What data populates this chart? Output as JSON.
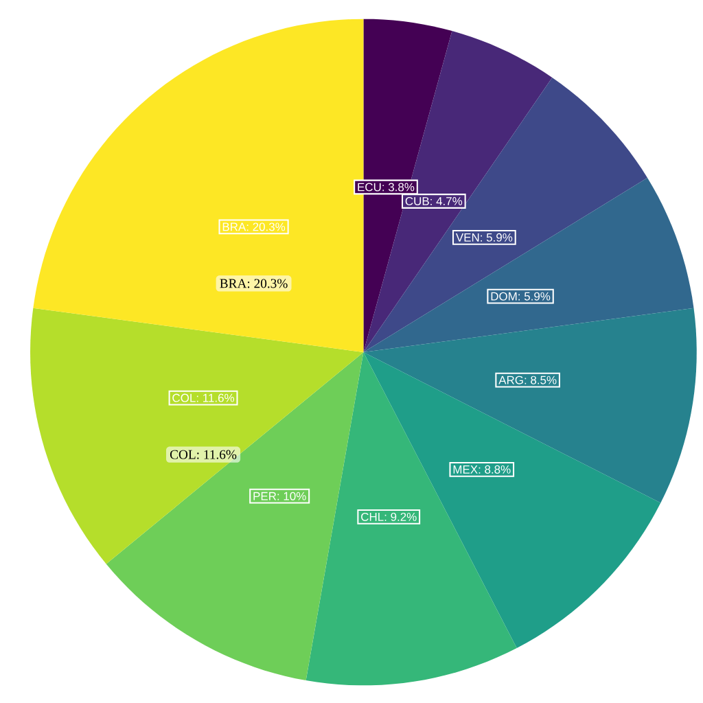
{
  "chart_data": {
    "type": "pie",
    "categories": [
      "ECU",
      "CUB",
      "VEN",
      "DOM",
      "ARG",
      "MEX",
      "CHL",
      "PER",
      "COL",
      "BRA"
    ],
    "values": [
      3.8,
      4.7,
      5.9,
      5.9,
      8.5,
      8.8,
      9.2,
      10,
      11.6,
      20.3
    ],
    "colors": [
      "#440154",
      "#482878",
      "#3e4989",
      "#31688e",
      "#26828e",
      "#1f9e89",
      "#35b779",
      "#6ece58",
      "#b5de2b",
      "#fde725"
    ],
    "value_labels": [
      ": 3.8%",
      ": 4.7%",
      ": 5.9%",
      ": 5.9%",
      ": 8.5%",
      ": 8.8%",
      ": 9.2%",
      ": 10%",
      ": 11.6%",
      ": 20.3%"
    ],
    "annotations": [
      {
        "text": "BRA: 20.3%",
        "x": "BRA"
      },
      {
        "text": "COL: 11.6%",
        "x": "COL"
      }
    ]
  }
}
